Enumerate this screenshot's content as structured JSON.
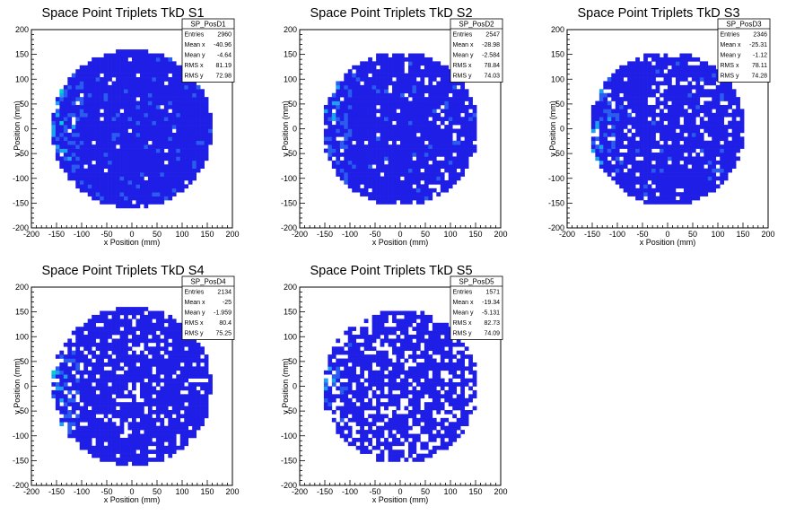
{
  "chart_data": [
    {
      "type": "heatmap",
      "title": "Space Point Triplets TkD S1",
      "xlabel": "x Position (mm)",
      "ylabel": "y Position (mm)",
      "xlim": [
        -200,
        200
      ],
      "ylim": [
        -200,
        200
      ],
      "xticks": [
        "-200",
        "-150",
        "-100",
        "-50",
        "0",
        "50",
        "100",
        "150",
        "200"
      ],
      "yticks": [
        "-200",
        "-150",
        "-100",
        "-50",
        "0",
        "50",
        "100",
        "150",
        "200"
      ],
      "stats": {
        "name": "SP_PosD1",
        "rows": [
          {
            "label": "Entries",
            "value": "2960"
          },
          {
            "label": "Mean x",
            "value": "-40.96"
          },
          {
            "label": "Mean y",
            "value": "-4.64"
          },
          {
            "label": "RMS x",
            "value": "81.19"
          },
          {
            "label": "RMS y",
            "value": "72.98"
          }
        ]
      },
      "disk_radius": 160,
      "density_level": 0.55,
      "hot_edge_x": -150,
      "fill_fraction": 0.97
    },
    {
      "type": "heatmap",
      "title": "Space Point Triplets TkD S2",
      "xlabel": "x Position (mm)",
      "ylabel": "y Position (mm)",
      "xlim": [
        -200,
        200
      ],
      "ylim": [
        -200,
        200
      ],
      "xticks": [
        "-200",
        "-150",
        "-100",
        "-50",
        "0",
        "50",
        "100",
        "150",
        "200"
      ],
      "yticks": [
        "-200",
        "-150",
        "-100",
        "-50",
        "0",
        "50",
        "100",
        "150",
        "200"
      ],
      "stats": {
        "name": "SP_PosD2",
        "rows": [
          {
            "label": "Entries",
            "value": "2547"
          },
          {
            "label": "Mean x",
            "value": "-28.98"
          },
          {
            "label": "Mean y",
            "value": "-2.584"
          },
          {
            "label": "RMS x",
            "value": "78.84"
          },
          {
            "label": "RMS y",
            "value": "74.03"
          }
        ]
      },
      "disk_radius": 155,
      "density_level": 0.5,
      "hot_edge_x": -150,
      "fill_fraction": 0.93
    },
    {
      "type": "heatmap",
      "title": "Space Point Triplets TkD S3",
      "xlabel": "x Position (mm)",
      "ylabel": "y Position (mm)",
      "xlim": [
        -200,
        200
      ],
      "ylim": [
        -200,
        200
      ],
      "xticks": [
        "-200",
        "-150",
        "-100",
        "-50",
        "0",
        "50",
        "100",
        "150",
        "200"
      ],
      "yticks": [
        "-200",
        "-150",
        "-100",
        "-50",
        "0",
        "50",
        "100",
        "150",
        "200"
      ],
      "stats": {
        "name": "SP_PosD3",
        "rows": [
          {
            "label": "Entries",
            "value": "2346"
          },
          {
            "label": "Mean x",
            "value": "-25.31"
          },
          {
            "label": "Mean y",
            "value": "-1.12"
          },
          {
            "label": "RMS x",
            "value": "78.11"
          },
          {
            "label": "RMS y",
            "value": "74.28"
          }
        ]
      },
      "disk_radius": 155,
      "density_level": 0.5,
      "hot_edge_x": -150,
      "fill_fraction": 0.88
    },
    {
      "type": "heatmap",
      "title": "Space Point Triplets TkD S4",
      "xlabel": "x Position (mm)",
      "ylabel": "y Position (mm)",
      "xlim": [
        -200,
        200
      ],
      "ylim": [
        -200,
        200
      ],
      "xticks": [
        "-200",
        "-150",
        "-100",
        "-50",
        "0",
        "50",
        "100",
        "150",
        "200"
      ],
      "yticks": [
        "-200",
        "-150",
        "-100",
        "-50",
        "0",
        "50",
        "100",
        "150",
        "200"
      ],
      "stats": {
        "name": "SP_PosD4",
        "rows": [
          {
            "label": "Entries",
            "value": "2134"
          },
          {
            "label": "Mean x",
            "value": "-25"
          },
          {
            "label": "Mean y",
            "value": "-1.959"
          },
          {
            "label": "RMS x",
            "value": "80.4"
          },
          {
            "label": "RMS y",
            "value": "75.25"
          }
        ]
      },
      "disk_radius": 160,
      "density_level": 0.45,
      "hot_edge_x": -150,
      "fill_fraction": 0.85
    },
    {
      "type": "heatmap",
      "title": "Space Point Triplets TkD S5",
      "xlabel": "x Position (mm)",
      "ylabel": "y Position (mm)",
      "xlim": [
        -200,
        200
      ],
      "ylim": [
        -200,
        200
      ],
      "xticks": [
        "-200",
        "-150",
        "-100",
        "-50",
        "0",
        "50",
        "100",
        "150",
        "200"
      ],
      "yticks": [
        "-200",
        "-150",
        "-100",
        "-50",
        "0",
        "50",
        "100",
        "150",
        "200"
      ],
      "stats": {
        "name": "SP_PosD5",
        "rows": [
          {
            "label": "Entries",
            "value": "1571"
          },
          {
            "label": "Mean x",
            "value": "-19.34"
          },
          {
            "label": "Mean y",
            "value": "-5.131"
          },
          {
            "label": "RMS x",
            "value": "82.73"
          },
          {
            "label": "RMS y",
            "value": "74.09"
          }
        ]
      },
      "disk_radius": 155,
      "density_level": 0.4,
      "hot_edge_x": -150,
      "fill_fraction": 0.72
    }
  ],
  "colors": {
    "palette": [
      "#1e1ee6",
      "#2a5cf0",
      "#1ea0f0",
      "#00d2d2",
      "#00e68c",
      "#5af03c",
      "#c8e600",
      "#ffb400",
      "#ff3c00",
      "#e60000"
    ]
  }
}
